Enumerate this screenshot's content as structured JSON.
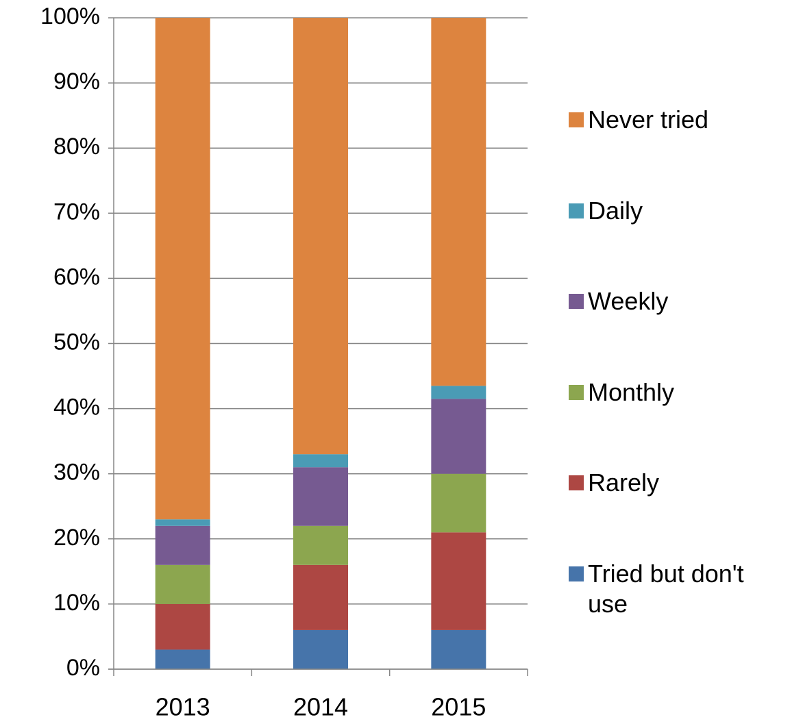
{
  "chart_data": {
    "type": "stacked_bar",
    "categories": [
      "2013",
      "2014",
      "2015"
    ],
    "series": [
      {
        "name": "Tried but don't use",
        "color": "#4674aa",
        "values": [
          3,
          6,
          6
        ]
      },
      {
        "name": "Rarely",
        "color": "#ad4743",
        "values": [
          7,
          10,
          15
        ]
      },
      {
        "name": "Monthly",
        "color": "#8ca64f",
        "values": [
          6,
          6,
          9
        ]
      },
      {
        "name": "Weekly",
        "color": "#765a91",
        "values": [
          6,
          9,
          11.5
        ]
      },
      {
        "name": "Daily",
        "color": "#4a9bb5",
        "values": [
          1,
          2,
          2
        ]
      },
      {
        "name": "Never tried",
        "color": "#dd843f",
        "values": [
          77,
          67,
          56.5
        ]
      }
    ],
    "ylim": [
      0,
      100
    ],
    "yticks": [
      {
        "value": 0,
        "label": "0%"
      },
      {
        "value": 10,
        "label": "10%"
      },
      {
        "value": 20,
        "label": "20%"
      },
      {
        "value": 30,
        "label": "30%"
      },
      {
        "value": 40,
        "label": "40%"
      },
      {
        "value": 50,
        "label": "50%"
      },
      {
        "value": 60,
        "label": "60%"
      },
      {
        "value": 70,
        "label": "70%"
      },
      {
        "value": 80,
        "label": "80%"
      },
      {
        "value": 90,
        "label": "90%"
      },
      {
        "value": 100,
        "label": "100%"
      }
    ],
    "grid": true,
    "legend": "right"
  }
}
